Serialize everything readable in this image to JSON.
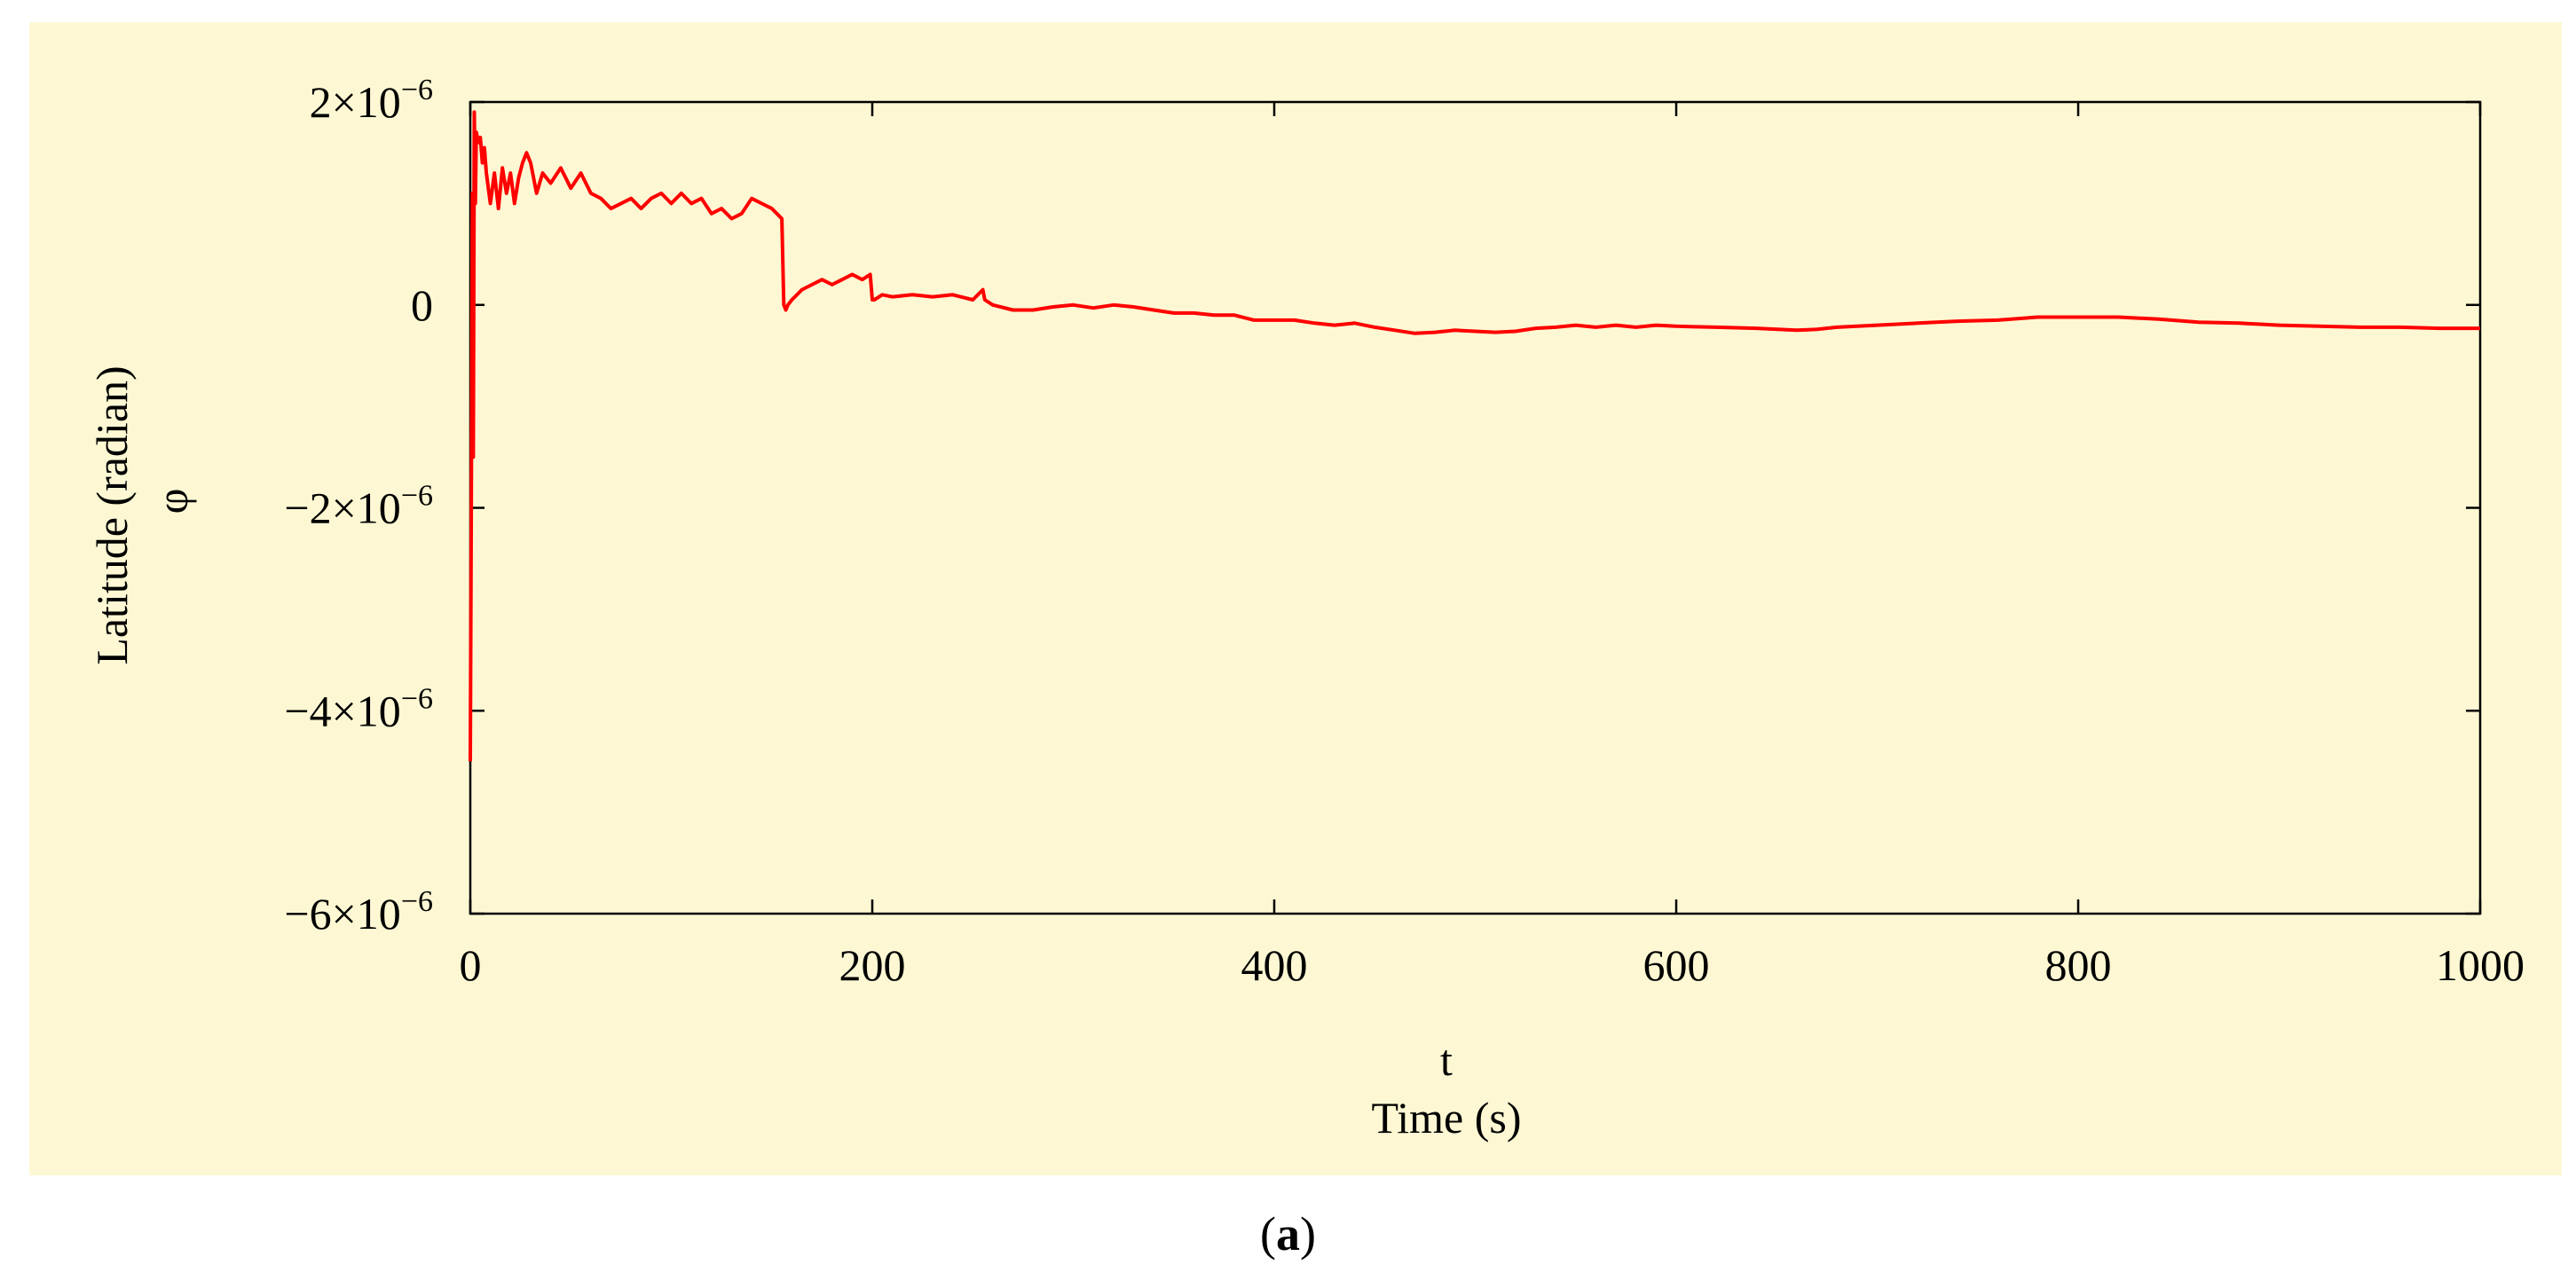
{
  "chart_data": {
    "type": "line",
    "xlabel_symbol": "t",
    "xlabel": "Time (s)",
    "ylabel": "Latitude (radian)",
    "ylabel_symbol": "φ",
    "xlim": [
      0,
      1000
    ],
    "ylim": [
      -6e-06,
      2e-06
    ],
    "xticks": [
      0,
      200,
      400,
      600,
      800,
      1000
    ],
    "yticks": [
      -6e-06,
      -4e-06,
      -2e-06,
      0,
      2e-06
    ],
    "xtick_labels": [
      "0",
      "200",
      "400",
      "600",
      "800",
      "1000"
    ],
    "ytick_labels": [
      {
        "mantissa": "−6×10",
        "exp": "−6"
      },
      {
        "mantissa": "−4×10",
        "exp": "−6"
      },
      {
        "mantissa": "−2×10",
        "exp": "−6"
      },
      {
        "mantissa": "0",
        "exp": ""
      },
      {
        "mantissa": "2×10",
        "exp": "−6"
      }
    ],
    "grid": false,
    "line_color": "#ff0000",
    "series": [
      {
        "x": [
          0,
          0.5,
          1,
          1.5,
          2,
          2.5,
          3,
          4,
          5,
          6,
          7,
          8,
          10,
          12,
          14,
          16,
          18,
          20,
          22,
          24,
          26,
          28,
          30,
          33,
          36,
          40,
          45,
          50,
          55,
          60,
          65,
          70,
          75,
          80,
          85,
          90,
          95,
          100,
          105,
          110,
          115,
          120,
          125,
          130,
          135,
          140,
          145,
          150,
          155,
          156,
          157,
          158,
          160,
          165,
          170,
          175,
          180,
          185,
          190,
          195,
          199,
          200,
          201,
          205,
          210,
          220,
          230,
          240,
          250,
          255,
          256,
          260,
          270,
          280,
          290,
          300,
          310,
          320,
          330,
          340,
          350,
          360,
          370,
          380,
          390,
          400,
          410,
          420,
          430,
          440,
          450,
          460,
          470,
          480,
          490,
          500,
          510,
          520,
          530,
          540,
          550,
          560,
          570,
          580,
          590,
          600,
          620,
          640,
          660,
          670,
          680,
          700,
          720,
          740,
          760,
          780,
          800,
          820,
          840,
          860,
          880,
          900,
          920,
          940,
          960,
          980,
          1000
        ],
        "y": [
          -4.5e-06,
          -2e-06,
          1.1e-06,
          -1.5e-06,
          1.9e-06,
          1e-06,
          1.7e-06,
          1.6e-06,
          1.65e-06,
          1.4e-06,
          1.55e-06,
          1.3e-06,
          1e-06,
          1.3e-06,
          9.5e-07,
          1.35e-06,
          1.1e-06,
          1.3e-06,
          1e-06,
          1.25e-06,
          1.4e-06,
          1.5e-06,
          1.4e-06,
          1.1e-06,
          1.3e-06,
          1.2e-06,
          1.35e-06,
          1.15e-06,
          1.3e-06,
          1.1e-06,
          1.05e-06,
          9.5e-07,
          1e-06,
          1.05e-06,
          9.5e-07,
          1.05e-06,
          1.1e-06,
          1e-06,
          1.1e-06,
          1e-06,
          1.05e-06,
          9e-07,
          9.5e-07,
          8.5e-07,
          9e-07,
          1.05e-06,
          1e-06,
          9.5e-07,
          8.5e-07,
          0.0,
          -5e-08,
          0.0,
          5e-08,
          1.5e-07,
          2e-07,
          2.5e-07,
          2e-07,
          2.5e-07,
          3e-07,
          2.5e-07,
          3e-07,
          5e-08,
          5e-08,
          1e-07,
          8e-08,
          1e-07,
          8e-08,
          1e-07,
          5e-08,
          1.5e-07,
          5e-08,
          0.0,
          -5e-08,
          -5e-08,
          -2e-08,
          0.0,
          -3e-08,
          0.0,
          -2e-08,
          -5e-08,
          -8e-08,
          -8e-08,
          -1e-07,
          -1e-07,
          -1.5e-07,
          -1.5e-07,
          -1.5e-07,
          -1.8e-07,
          -2e-07,
          -1.8e-07,
          -2.2e-07,
          -2.5e-07,
          -2.8e-07,
          -2.7e-07,
          -2.5e-07,
          -2.6e-07,
          -2.7e-07,
          -2.6e-07,
          -2.3e-07,
          -2.2e-07,
          -2e-07,
          -2.2e-07,
          -2e-07,
          -2.2e-07,
          -2e-07,
          -2.1e-07,
          -2.2e-07,
          -2.3e-07,
          -2.5e-07,
          -2.4e-07,
          -2.2e-07,
          -2e-07,
          -1.8e-07,
          -1.6e-07,
          -1.5e-07,
          -1.2e-07,
          -1.2e-07,
          -1.2e-07,
          -1.4e-07,
          -1.7e-07,
          -1.8e-07,
          -2e-07,
          -2.1e-07,
          -2.2e-07,
          -2.2e-07,
          -2.3e-07,
          -2.3e-07
        ]
      }
    ]
  },
  "caption": {
    "open": "(",
    "letter": "a",
    "close": ")"
  }
}
